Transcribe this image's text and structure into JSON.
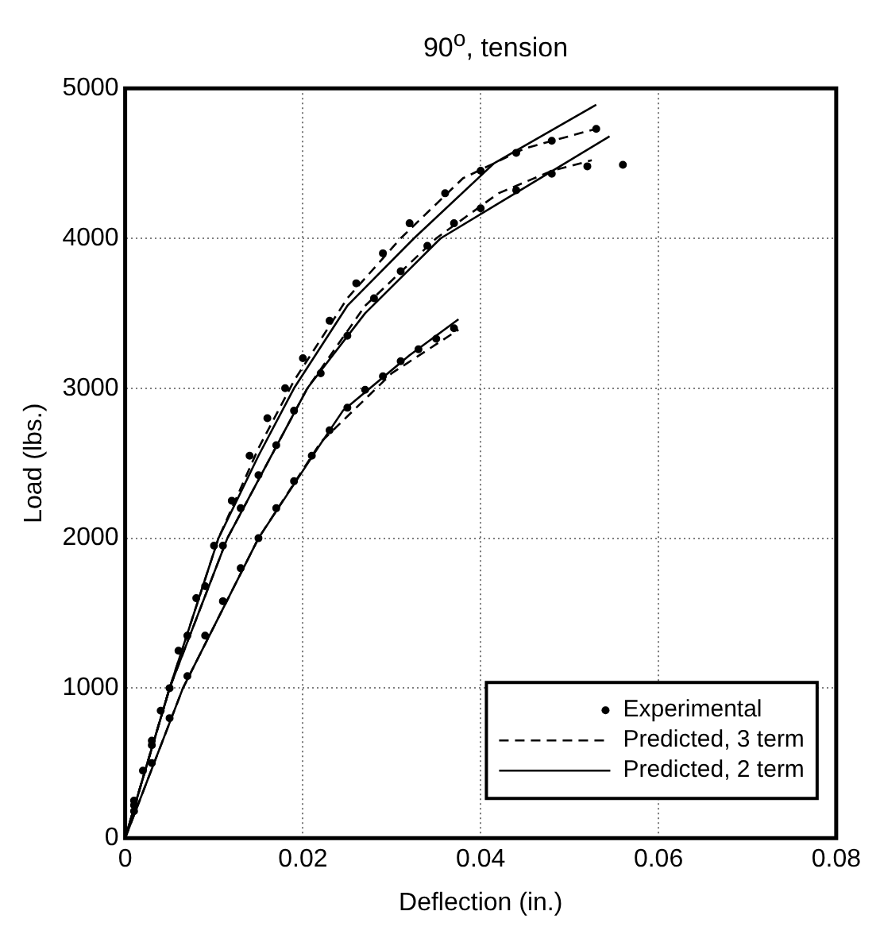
{
  "chart_data": {
    "type": "line",
    "title": "90$^{o}$, tension",
    "xlabel": "Deflection (in.)",
    "ylabel": "Load (lbs.)",
    "xlim": [
      0,
      0.08
    ],
    "xticks": [
      0,
      0.02,
      0.04,
      0.06,
      0.08
    ],
    "ylim": [
      0,
      5000
    ],
    "yticks": [
      0,
      1000,
      2000,
      3000,
      4000,
      5000
    ],
    "grid": true,
    "legend": "bottom right",
    "series": [
      {
        "name": "Experimental",
        "type": "scatter",
        "marker": "circle",
        "color": "#000000",
        "x": [
          0.001,
          0.002,
          0.003,
          0.004,
          0.006,
          0.008,
          0.01,
          0.012,
          0.014,
          0.016,
          0.018,
          0.02,
          0.023,
          0.026,
          0.029,
          0.032,
          0.036,
          0.04,
          0.044,
          0.048,
          0.053
        ],
        "values": [
          250,
          450,
          650,
          850,
          1250,
          1600,
          1950,
          2250,
          2550,
          2800,
          3000,
          3200,
          3450,
          3700,
          3900,
          4100,
          4300,
          4450,
          4570,
          4650,
          4730
        ]
      },
      {
        "type": "scatter",
        "marker": "circle",
        "color": "#000000",
        "x": [
          0.001,
          0.003,
          0.005,
          0.007,
          0.009,
          0.011,
          0.013,
          0.015,
          0.017,
          0.019,
          0.022,
          0.025,
          0.028,
          0.031,
          0.034,
          0.037,
          0.04,
          0.044,
          0.048,
          0.052,
          0.056
        ],
        "values": [
          220,
          620,
          1000,
          1350,
          1680,
          1950,
          2200,
          2420,
          2620,
          2850,
          3100,
          3350,
          3600,
          3780,
          3950,
          4100,
          4200,
          4320,
          4430,
          4480,
          4490
        ]
      },
      {
        "type": "scatter",
        "marker": "circle",
        "color": "#000000",
        "x": [
          0.001,
          0.003,
          0.005,
          0.007,
          0.009,
          0.011,
          0.013,
          0.015,
          0.017,
          0.019,
          0.021,
          0.023,
          0.025,
          0.027,
          0.029,
          0.031,
          0.033,
          0.035,
          0.037
        ],
        "values": [
          180,
          500,
          800,
          1080,
          1350,
          1580,
          1800,
          2000,
          2200,
          2380,
          2550,
          2720,
          2870,
          2990,
          3080,
          3180,
          3260,
          3330,
          3400
        ]
      },
      {
        "name": "Predicted, 3 term",
        "marker": "none",
        "line_style": "dashed",
        "color": "#000000",
        "x": [
          0,
          0.005,
          0.0105,
          0.015,
          0.019,
          0.025,
          0.031,
          0.038,
          0.045,
          0.053
        ],
        "values": [
          0,
          1000,
          2000,
          2600,
          3050,
          3600,
          4000,
          4400,
          4600,
          4730
        ]
      },
      {
        "marker": "none",
        "line_style": "dashed",
        "color": "#000000",
        "x": [
          0,
          0.005,
          0.0115,
          0.016,
          0.0205,
          0.027,
          0.035,
          0.042,
          0.048,
          0.0525
        ],
        "values": [
          0,
          1000,
          2000,
          2500,
          3000,
          3550,
          4000,
          4300,
          4450,
          4520
        ]
      },
      {
        "marker": "none",
        "line_style": "dashed",
        "color": "#000000",
        "x": [
          0,
          0.0065,
          0.015,
          0.022,
          0.03,
          0.0375
        ],
        "values": [
          0,
          1000,
          2000,
          2640,
          3100,
          3390
        ]
      },
      {
        "name": "Predicted, 2 term",
        "marker": "none",
        "line_style": "solid",
        "color": "#000000",
        "x": [
          0,
          0.005,
          0.0105,
          0.015,
          0.019,
          0.025,
          0.0325,
          0.0415,
          0.053
        ],
        "values": [
          0,
          1000,
          2000,
          2550,
          3000,
          3550,
          4000,
          4500,
          4890
        ]
      },
      {
        "marker": "none",
        "line_style": "solid",
        "color": "#000000",
        "x": [
          0,
          0.005,
          0.0115,
          0.016,
          0.0205,
          0.027,
          0.0355,
          0.045,
          0.0545
        ],
        "values": [
          0,
          1000,
          2000,
          2500,
          3000,
          3500,
          4000,
          4340,
          4680
        ]
      },
      {
        "marker": "none",
        "line_style": "solid",
        "color": "#000000",
        "x": [
          0,
          0.0065,
          0.015,
          0.022,
          0.0245,
          0.032,
          0.0375
        ],
        "values": [
          0,
          1000,
          2000,
          2630,
          2850,
          3220,
          3460
        ]
      }
    ]
  }
}
